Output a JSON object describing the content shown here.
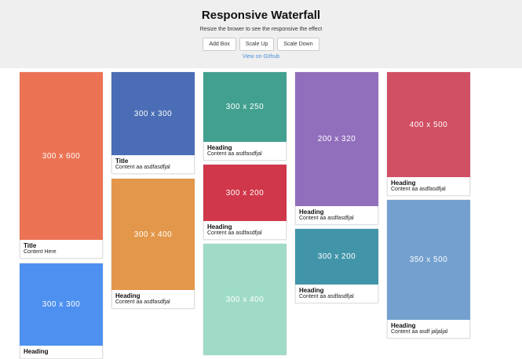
{
  "header": {
    "title": "Responsive Waterfall",
    "subtitle": "Resize the brower to see the responsive the effect",
    "buttons": [
      "Add Box",
      "Scale Up",
      "Scale Down"
    ],
    "link": "View on Github"
  },
  "columns": [
    [
      {
        "label": "300 x 600",
        "heading": "Title",
        "content": "Content Here"
      },
      {
        "label": "300 x 300",
        "heading": "Heading"
      }
    ],
    [
      {
        "label": "300 x 300",
        "heading": "Title",
        "content": "Content aa asdfasdfjal"
      },
      {
        "label": "300 x 400",
        "heading": "Heading",
        "content": "Content aa asdfasdfjal"
      }
    ],
    [
      {
        "label": "300 x 250",
        "heading": "Heading",
        "content": "Content aa asdfasdfjal"
      },
      {
        "label": "300 x 200",
        "heading": "Heading",
        "content": "Content aa asdfasdfjal"
      },
      {
        "label": "300 x 400"
      }
    ],
    [
      {
        "label": "200 x 320",
        "heading": "Heading",
        "content": "Content aa asdfasdfjal"
      },
      {
        "label": "300 x 200",
        "heading": "Heading",
        "content": "Content aa asdfasdfjal"
      }
    ],
    [
      {
        "label": "400 x 500",
        "heading": "Heading",
        "content": "Content aa asdfasdfjal"
      },
      {
        "label": "350 x 500",
        "heading": "Heading",
        "content": "Content aa asdf jaljaljal"
      }
    ]
  ]
}
